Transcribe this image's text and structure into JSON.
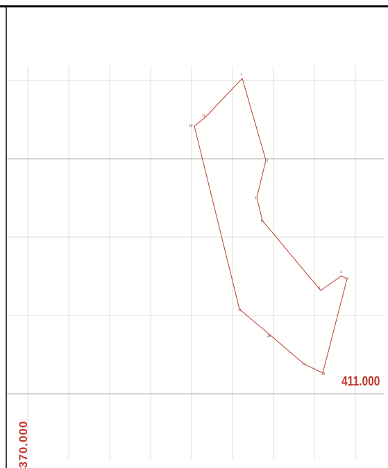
{
  "coordinate_labels": {
    "northing": "411.000",
    "easting": "370.000"
  },
  "colors": {
    "boundary": "#c0392b",
    "grid": "#d8d8d8",
    "label": "#c0392b",
    "frame": "#000000"
  },
  "parcel": {
    "vertices": [
      {
        "id": "7",
        "label": "7"
      },
      {
        "id": "2",
        "label": "2"
      },
      {
        "id": "1",
        "label": "1"
      },
      {
        "id": "6",
        "label": "6"
      },
      {
        "id": "5",
        "label": "5"
      },
      {
        "id": "4",
        "label": "4"
      },
      {
        "id": "3",
        "label": "3"
      },
      {
        "id": "28",
        "label": "28"
      },
      {
        "id": "27",
        "label": "27"
      },
      {
        "id": "26",
        "label": "26"
      },
      {
        "id": "25",
        "label": "25"
      },
      {
        "id": "30",
        "label": "30"
      },
      {
        "id": "31",
        "label": "31"
      }
    ]
  }
}
